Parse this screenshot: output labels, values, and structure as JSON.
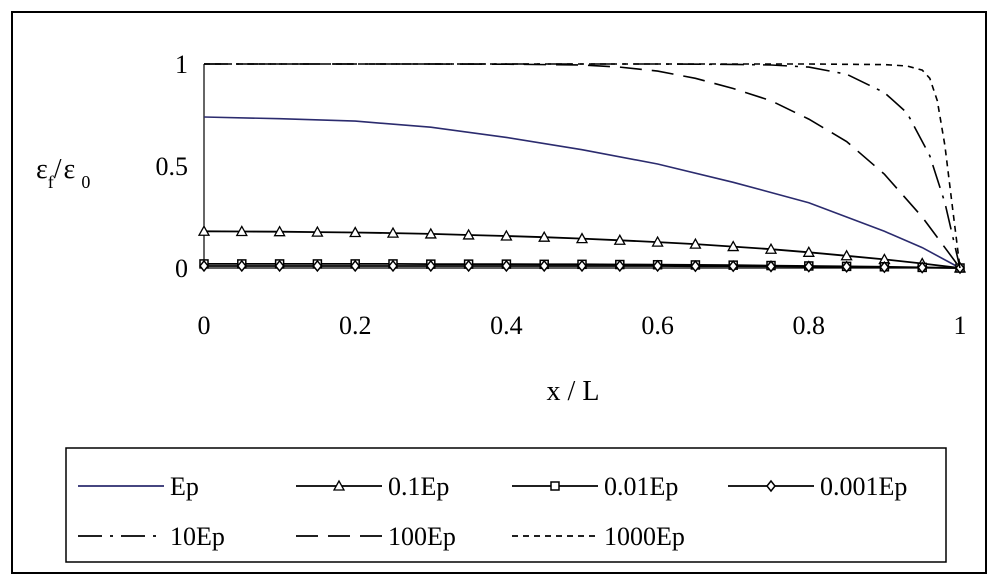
{
  "chart_data": {
    "type": "line",
    "xlabel": "x / L",
    "ylabel": "ε f / ε 0",
    "ylabel_parts": {
      "eps1": "ε",
      "sub1": "f",
      "slash": "/",
      "eps2": "ε",
      "sub2": "0"
    },
    "xlim": [
      0,
      1
    ],
    "ylim": [
      0,
      1
    ],
    "x_ticks": [
      "0",
      "0.2",
      "0.4",
      "0.6",
      "0.8",
      "1"
    ],
    "x_tick_values": [
      0,
      0.2,
      0.4,
      0.6,
      0.8,
      1
    ],
    "y_ticks": [
      "0",
      "0.5",
      "1"
    ],
    "y_tick_values": [
      0,
      0.5,
      1
    ],
    "grid": false,
    "legend_position": "bottom",
    "series": [
      {
        "name": "Ep",
        "dash": "solid",
        "marker": "none",
        "color": "#2b2b6e",
        "x": [
          0,
          0.1,
          0.2,
          0.3,
          0.4,
          0.5,
          0.6,
          0.7,
          0.8,
          0.85,
          0.9,
          0.95,
          1.0
        ],
        "y": [
          0.74,
          0.732,
          0.72,
          0.69,
          0.64,
          0.58,
          0.51,
          0.42,
          0.32,
          0.25,
          0.18,
          0.1,
          0.0
        ]
      },
      {
        "name": "0.1Ep",
        "dash": "solid",
        "marker": "triangle",
        "color": "#000000",
        "x": [
          0,
          0.05,
          0.1,
          0.15,
          0.2,
          0.25,
          0.3,
          0.35,
          0.4,
          0.45,
          0.5,
          0.55,
          0.6,
          0.65,
          0.7,
          0.75,
          0.8,
          0.85,
          0.9,
          0.95,
          1.0
        ],
        "y": [
          0.18,
          0.179,
          0.178,
          0.176,
          0.174,
          0.171,
          0.167,
          0.162,
          0.157,
          0.151,
          0.144,
          0.136,
          0.127,
          0.117,
          0.105,
          0.092,
          0.077,
          0.06,
          0.042,
          0.022,
          0.0
        ]
      },
      {
        "name": "0.01Ep",
        "dash": "solid",
        "marker": "square",
        "color": "#000000",
        "x": [
          0,
          0.05,
          0.1,
          0.15,
          0.2,
          0.25,
          0.3,
          0.35,
          0.4,
          0.45,
          0.5,
          0.55,
          0.6,
          0.65,
          0.7,
          0.75,
          0.8,
          0.85,
          0.9,
          0.95,
          1.0
        ],
        "y": [
          0.02,
          0.02,
          0.02,
          0.02,
          0.02,
          0.02,
          0.019,
          0.019,
          0.019,
          0.018,
          0.018,
          0.017,
          0.016,
          0.015,
          0.014,
          0.012,
          0.01,
          0.008,
          0.006,
          0.003,
          0.0
        ]
      },
      {
        "name": "0.001Ep",
        "dash": "solid",
        "marker": "diamond",
        "color": "#000000",
        "x": [
          0,
          0.05,
          0.1,
          0.15,
          0.2,
          0.25,
          0.3,
          0.35,
          0.4,
          0.45,
          0.5,
          0.55,
          0.6,
          0.65,
          0.7,
          0.75,
          0.8,
          0.85,
          0.9,
          0.95,
          1.0
        ],
        "y": [
          0.01,
          0.01,
          0.01,
          0.01,
          0.01,
          0.01,
          0.01,
          0.01,
          0.01,
          0.01,
          0.01,
          0.01,
          0.01,
          0.009,
          0.009,
          0.008,
          0.007,
          0.006,
          0.004,
          0.002,
          0.0
        ]
      },
      {
        "name": "10Ep",
        "dash": "dashdot",
        "marker": "none",
        "color": "#000000",
        "x": [
          0,
          0.1,
          0.2,
          0.3,
          0.4,
          0.5,
          0.6,
          0.7,
          0.75,
          0.8,
          0.85,
          0.9,
          0.93,
          0.96,
          0.98,
          1.0
        ],
        "y": [
          1.0,
          1.0,
          1.0,
          1.0,
          1.0,
          1.0,
          1.0,
          0.998,
          0.995,
          0.985,
          0.95,
          0.86,
          0.76,
          0.55,
          0.32,
          0.0
        ]
      },
      {
        "name": "100Ep",
        "dash": "longdash",
        "marker": "none",
        "color": "#000000",
        "x": [
          0,
          0.1,
          0.2,
          0.3,
          0.4,
          0.5,
          0.55,
          0.6,
          0.65,
          0.7,
          0.75,
          0.8,
          0.85,
          0.9,
          0.95,
          1.0
        ],
        "y": [
          1.0,
          1.0,
          1.0,
          1.0,
          0.999,
          0.995,
          0.985,
          0.965,
          0.93,
          0.88,
          0.82,
          0.73,
          0.62,
          0.46,
          0.25,
          0.0
        ]
      },
      {
        "name": "1000Ep",
        "dash": "shortdash",
        "marker": "none",
        "color": "#000000",
        "x": [
          0,
          0.2,
          0.4,
          0.6,
          0.8,
          0.9,
          0.93,
          0.95,
          0.96,
          0.97,
          0.98,
          0.99,
          1.0
        ],
        "y": [
          1.0,
          1.0,
          1.0,
          1.0,
          1.0,
          0.997,
          0.99,
          0.97,
          0.93,
          0.82,
          0.6,
          0.3,
          0.0
        ]
      }
    ]
  }
}
